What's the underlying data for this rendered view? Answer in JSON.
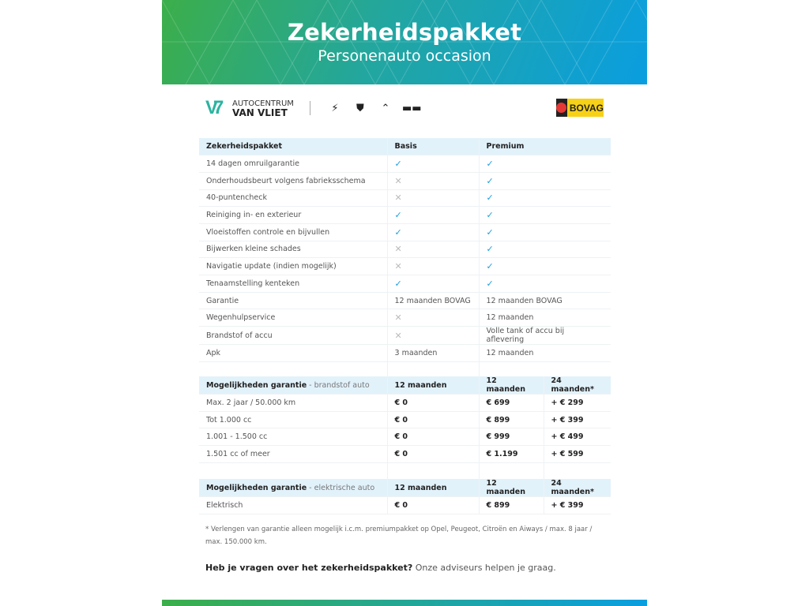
{
  "header": {
    "title": "Zekerheidspakket",
    "subtitle": "Personenauto occasion"
  },
  "logos": {
    "dealer_line1": "AUTOCENTRUM",
    "dealer_line2": "VAN VLIET",
    "brands": [
      "opel-logo",
      "peugeot-logo",
      "citroen-logo",
      "aiways-logo"
    ],
    "bovag": "BOVAG"
  },
  "colors": {
    "check": "#1a9ee0",
    "header_bg": "#e2f2fb",
    "gradient_start": "#3cae4a",
    "gradient_end": "#0a9ee0"
  },
  "package_table": {
    "headers": [
      "Zekerheidspakket",
      "Basis",
      "Premium"
    ],
    "rows": [
      {
        "label": "14 dagen omruilgarantie",
        "basis": "check",
        "premium": "check"
      },
      {
        "label": "Onderhoudsbeurt volgens fabrieksschema",
        "basis": "cross",
        "premium": "check"
      },
      {
        "label": "40-puntencheck",
        "basis": "cross",
        "premium": "check"
      },
      {
        "label": "Reiniging in- en exterieur",
        "basis": "check",
        "premium": "check"
      },
      {
        "label": "Vloeistoffen controle en bijvullen",
        "basis": "check",
        "premium": "check"
      },
      {
        "label": "Bijwerken kleine schades",
        "basis": "cross",
        "premium": "check"
      },
      {
        "label": "Navigatie update (indien mogelijk)",
        "basis": "cross",
        "premium": "check"
      },
      {
        "label": "Tenaamstelling kenteken",
        "basis": "check",
        "premium": "check"
      },
      {
        "label": "Garantie",
        "basis": "12 maanden BOVAG",
        "premium": "12 maanden BOVAG"
      },
      {
        "label": "Wegenhulpservice",
        "basis": "cross",
        "premium": "12 maanden"
      },
      {
        "label": "Brandstof of accu",
        "basis": "cross",
        "premium": "Volle tank of accu bij aflevering"
      },
      {
        "label": "Apk",
        "basis": "3 maanden",
        "premium": "12 maanden"
      }
    ]
  },
  "fuel_table": {
    "title": "Mogelijkheden garantie",
    "title_sub": " - brandstof auto",
    "headers": [
      "12 maanden",
      "12 maanden",
      "24 maanden*"
    ],
    "rows": [
      {
        "label": "Max. 2 jaar / 50.000 km",
        "c1": "€ 0",
        "c2": "€ 699",
        "c3": "+ € 299"
      },
      {
        "label": "Tot 1.000 cc",
        "c1": "€ 0",
        "c2": "€ 899",
        "c3": "+ € 399"
      },
      {
        "label": "1.001 - 1.500 cc",
        "c1": "€ 0",
        "c2": "€ 999",
        "c3": "+ € 499"
      },
      {
        "label": "1.501 cc of meer",
        "c1": "€ 0",
        "c2": "€ 1.199",
        "c3": "+ € 599"
      }
    ]
  },
  "ev_table": {
    "title": "Mogelijkheden garantie",
    "title_sub": " - elektrische auto",
    "headers": [
      "12 maanden",
      "12 maanden",
      "24 maanden*"
    ],
    "rows": [
      {
        "label": "Elektrisch",
        "c1": "€ 0",
        "c2": "€ 899",
        "c3": "+ € 399"
      }
    ]
  },
  "footnote": "* Verlengen van garantie alleen mogelijk i.c.m. premiumpakket op Opel, Peugeot, Citroën en Aiways / max. 8 jaar / max. 150.000 km.",
  "question": {
    "bold": "Heb je vragen over het zekerheidspakket?",
    "text": " Onze adviseurs helpen je graag."
  }
}
